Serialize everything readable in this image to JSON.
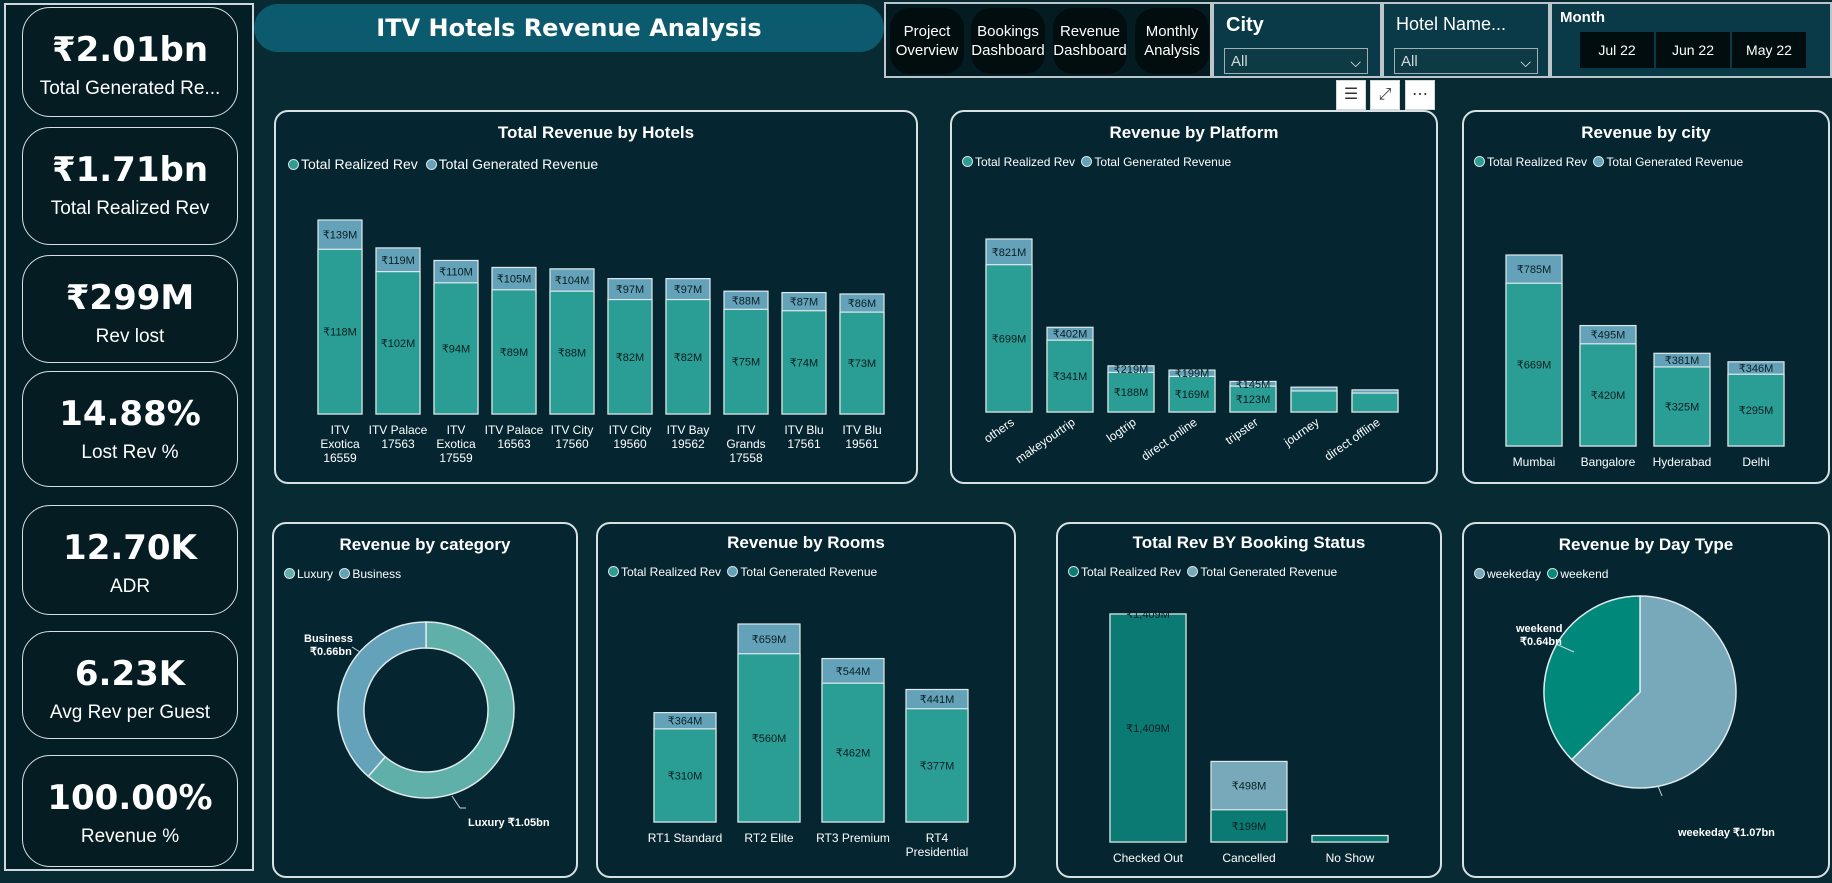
{
  "kpis": [
    {
      "value": "₹2.01bn",
      "label": "Total Generated Re..."
    },
    {
      "value": "₹1.71bn",
      "label": "Total Realized Rev"
    },
    {
      "value": "₹299M",
      "label": "Rev lost"
    },
    {
      "value": "14.88%",
      "label": "Lost Rev %"
    },
    {
      "value": "12.70K",
      "label": "ADR"
    },
    {
      "value": "6.23K",
      "label": "Avg Rev per Guest"
    },
    {
      "value": "100.00%",
      "label": "Revenue %"
    }
  ],
  "title": "ITV Hotels Revenue Analysis",
  "nav": [
    {
      "line1": "Project",
      "line2": "Overview"
    },
    {
      "line1": "Bookings",
      "line2": "Dashboard"
    },
    {
      "line1": "Revenue",
      "line2": "Dashboard"
    },
    {
      "line1": "Monthly",
      "line2": "Analysis"
    }
  ],
  "slicers": {
    "city": {
      "header": "City",
      "value": "All"
    },
    "hotel": {
      "header": "Hotel Name...",
      "value": "All"
    },
    "month": {
      "header": "Month",
      "options": [
        "Jul 22",
        "Jun 22",
        "May 22"
      ]
    }
  },
  "icons": [
    "filter-icon",
    "focus-mode-icon",
    "more-options-icon"
  ],
  "icon_glyphs": {
    "filter": "☰",
    "focus": "⤢",
    "more": "⋯"
  },
  "colors": {
    "realized": "#2a9d94",
    "generated": "#63a2b8",
    "panel": "#052631",
    "bg": "#072a33",
    "accent": "#0c5a6e"
  },
  "charts": {
    "hotels": {
      "title": "Total Revenue by  Hotels",
      "legend": [
        "Total Realized Rev",
        "Total Generated Revenue"
      ],
      "chart_data": {
        "type": "bar",
        "categories": [
          "ITV Exotica 16559",
          "ITV Palace 17563",
          "ITV Exotica 17559",
          "ITV Palace 16563",
          "ITV City 17560",
          "ITV City 19560",
          "ITV Bay 19562",
          "ITV Grands 17558",
          "ITV Blu 17561",
          "ITV Blu 19561"
        ],
        "series": [
          {
            "name": "Total Realized Rev",
            "values": [
              118,
              102,
              94,
              89,
              88,
              82,
              82,
              75,
              74,
              73
            ],
            "labels": [
              "₹118M",
              "₹102M",
              "₹94M",
              "₹89M",
              "₹88M",
              "₹82M",
              "₹82M",
              "₹75M",
              "₹74M",
              "₹73M"
            ]
          },
          {
            "name": "Total Generated Revenue",
            "values": [
              139,
              119,
              110,
              105,
              104,
              97,
              97,
              88,
              87,
              86
            ],
            "labels": [
              "₹139M",
              "₹119M",
              "₹110M",
              "₹105M",
              "₹104M",
              "₹97M",
              "₹97M",
              "₹88M",
              "₹87M",
              "₹86M"
            ]
          }
        ],
        "label_lines": [
          [
            "ITV",
            "Exotica",
            "16559"
          ],
          [
            "ITV Palace",
            "17563"
          ],
          [
            "ITV",
            "Exotica",
            "17559"
          ],
          [
            "ITV Palace",
            "16563"
          ],
          [
            "ITV City",
            "17560"
          ],
          [
            "ITV City",
            "19560"
          ],
          [
            "ITV Bay",
            "19562"
          ],
          [
            "ITV",
            "Grands",
            "17558"
          ],
          [
            "ITV Blu",
            "17561"
          ],
          [
            "ITV Blu",
            "19561"
          ]
        ]
      }
    },
    "platform": {
      "title": "Revenue by Platform",
      "legend": [
        "Total Realized Rev",
        "Total Generated Revenue"
      ],
      "chart_data": {
        "type": "bar",
        "categories": [
          "others",
          "makeyourtrip",
          "logtrip",
          "direct online",
          "tripster",
          "journey",
          "direct offline"
        ],
        "series": [
          {
            "name": "Total Realized Rev",
            "values": [
              699,
              341,
              188,
              169,
              123,
              100,
              90
            ],
            "labels": [
              "₹699M",
              "₹341M",
              "₹188M",
              "₹169M",
              "₹123M",
              "",
              ""
            ]
          },
          {
            "name": "Total Generated Revenue",
            "values": [
              821,
              402,
              219,
              199,
              145,
              118,
              105
            ],
            "labels": [
              "₹821M",
              "₹402M",
              "₹219M",
              "₹199M",
              "₹145M",
              "",
              ""
            ]
          }
        ]
      }
    },
    "city": {
      "title": "Revenue by city",
      "legend": [
        "Total Realized Rev",
        "Total Generated Revenue"
      ],
      "chart_data": {
        "type": "bar",
        "categories": [
          "Mumbai",
          "Bangalore",
          "Hyderabad",
          "Delhi"
        ],
        "series": [
          {
            "name": "Total Realized Rev",
            "values": [
              669,
              420,
              325,
              295
            ],
            "labels": [
              "₹669M",
              "₹420M",
              "₹325M",
              "₹295M"
            ]
          },
          {
            "name": "Total Generated Revenue",
            "values": [
              785,
              495,
              381,
              346
            ],
            "labels": [
              "₹785M",
              "₹495M",
              "₹381M",
              "₹346M"
            ]
          }
        ]
      }
    },
    "category": {
      "title": "Revenue by category",
      "legend": [
        "Luxury",
        "Business"
      ],
      "chart_data": {
        "type": "pie",
        "donut": true,
        "labels": [
          "Luxury",
          "Business"
        ],
        "values": [
          1.05,
          0.66
        ],
        "value_labels": [
          "₹1.05bn",
          "₹0.66bn"
        ]
      }
    },
    "rooms": {
      "title": "Revenue by Rooms",
      "legend": [
        "Total Realized Rev",
        "Total Generated Revenue"
      ],
      "chart_data": {
        "type": "bar",
        "categories": [
          "RT1 Standard",
          "RT2 Elite",
          "RT3 Premium",
          "RT4 Presidential"
        ],
        "label_lines": [
          [
            "RT1 Standard"
          ],
          [
            "RT2 Elite"
          ],
          [
            "RT3 Premium"
          ],
          [
            "RT4",
            "Presidential"
          ]
        ],
        "series": [
          {
            "name": "Total Realized Rev",
            "values": [
              310,
              560,
              462,
              377
            ],
            "labels": [
              "₹310M",
              "₹560M",
              "₹462M",
              "₹377M"
            ]
          },
          {
            "name": "Total Generated Revenue",
            "values": [
              364,
              659,
              544,
              441
            ],
            "labels": [
              "₹364M",
              "₹659M",
              "₹544M",
              "₹441M"
            ]
          }
        ]
      }
    },
    "status": {
      "title": "Total Rev BY Booking Status",
      "legend": [
        "Total Realized Rev",
        "Total Generated Revenue"
      ],
      "chart_data": {
        "type": "bar",
        "categories": [
          "Checked Out",
          "Cancelled",
          "No Show"
        ],
        "series": [
          {
            "name": "Total Realized Rev",
            "values": [
              1409,
              199,
              40
            ],
            "labels": [
              "₹1,409M",
              "₹199M",
              ""
            ]
          },
          {
            "name": "Total Generated Revenue",
            "values": [
              1409,
              498,
              40
            ],
            "labels": [
              "₹1,409M",
              "₹498M",
              ""
            ]
          }
        ]
      }
    },
    "daytype": {
      "title": "Revenue by Day Type",
      "legend": [
        "weekeday",
        "weekend"
      ],
      "chart_data": {
        "type": "pie",
        "labels": [
          "weekeday",
          "weekend"
        ],
        "values": [
          1.07,
          0.64
        ],
        "value_labels": [
          "₹1.07bn",
          "₹0.64bn"
        ]
      }
    }
  }
}
